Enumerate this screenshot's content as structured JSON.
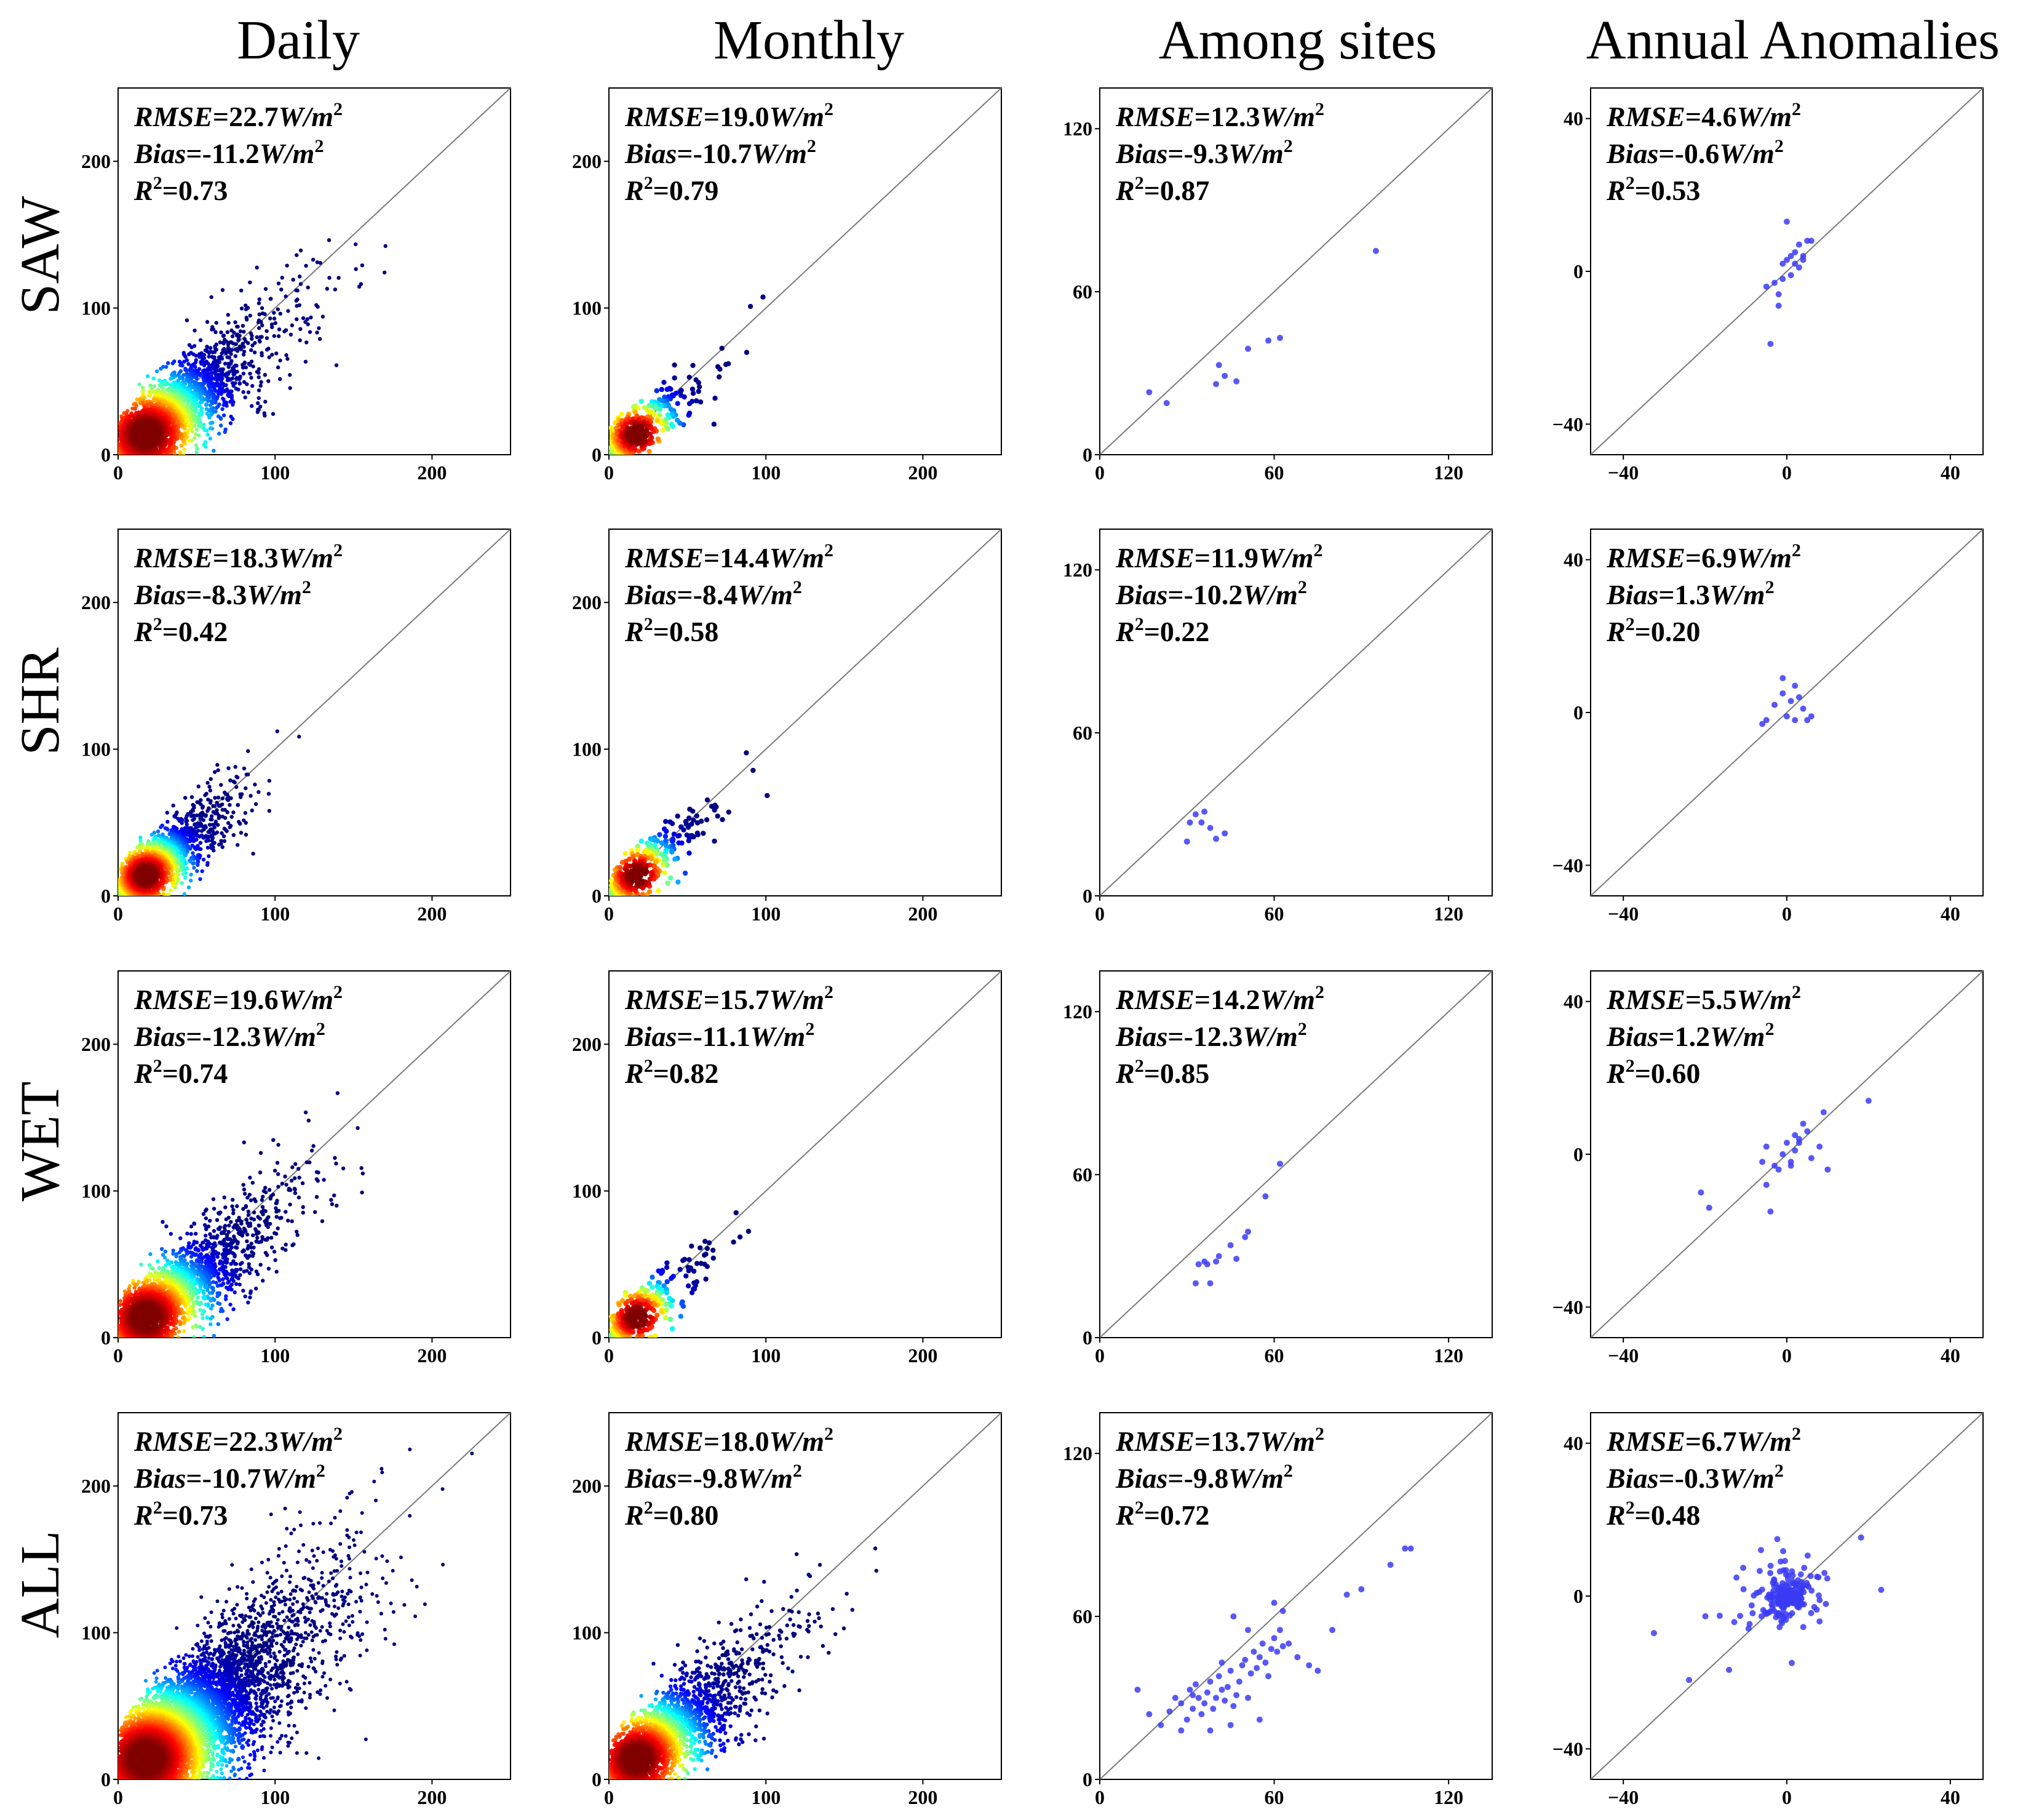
{
  "columns": [
    "Daily",
    "Monthly",
    "Among sites",
    "Annual Anomalies"
  ],
  "rows": [
    "SAW",
    "SHR",
    "WET",
    "ALL"
  ],
  "stat_labels": {
    "rmse": "RMSE",
    "bias": "Bias",
    "r2": "R"
  },
  "unit": "W/m",
  "chart_data": [
    {
      "type": "scatter",
      "row": "SAW",
      "column": "Daily",
      "xlim": [
        0,
        250
      ],
      "ylim": [
        0,
        250
      ],
      "xticks": [
        "0",
        "100",
        "200"
      ],
      "yticks": [
        "0",
        "100",
        "200"
      ],
      "rmse": "22.7",
      "bias": "-11.2",
      "r2": "0.73",
      "density": true,
      "spread": "medium",
      "color_max": "#cc0000"
    },
    {
      "type": "scatter",
      "row": "SAW",
      "column": "Monthly",
      "xlim": [
        0,
        250
      ],
      "ylim": [
        0,
        250
      ],
      "xticks": [
        "0",
        "100",
        "200"
      ],
      "yticks": [
        "0",
        "100",
        "200"
      ],
      "rmse": "19.0",
      "bias": "-10.7",
      "r2": "0.79",
      "density": true,
      "spread": "low"
    },
    {
      "type": "scatter",
      "row": "SAW",
      "column": "Among sites",
      "xlim": [
        0,
        135
      ],
      "ylim": [
        0,
        135
      ],
      "xticks": [
        "0",
        "60",
        "120"
      ],
      "yticks": [
        "0",
        "60",
        "120"
      ],
      "rmse": "12.3",
      "bias": "-9.3",
      "r2": "0.87",
      "points": [
        [
          17,
          23
        ],
        [
          23,
          19
        ],
        [
          40,
          26
        ],
        [
          41,
          33
        ],
        [
          43,
          29
        ],
        [
          47,
          27
        ],
        [
          51,
          39
        ],
        [
          58,
          42
        ],
        [
          62,
          43
        ],
        [
          95,
          75
        ]
      ]
    },
    {
      "type": "scatter",
      "row": "SAW",
      "column": "Annual Anomalies",
      "xlim": [
        -48,
        48
      ],
      "ylim": [
        -48,
        48
      ],
      "xticks": [
        "-40",
        "0",
        "40"
      ],
      "yticks": [
        "-40",
        "0",
        "40"
      ],
      "rmse": "4.6",
      "bias": "-0.6",
      "r2": "0.53",
      "points": [
        [
          -5,
          -4
        ],
        [
          -4,
          -19
        ],
        [
          -3,
          -3
        ],
        [
          -2,
          -6
        ],
        [
          -1,
          -2
        ],
        [
          -1,
          2
        ],
        [
          0,
          3
        ],
        [
          0,
          13
        ],
        [
          1,
          4
        ],
        [
          1,
          -1
        ],
        [
          2,
          5
        ],
        [
          2,
          2
        ],
        [
          3,
          7
        ],
        [
          4,
          4
        ],
        [
          4,
          3
        ],
        [
          5,
          8
        ],
        [
          6,
          8
        ],
        [
          3,
          1
        ],
        [
          -2,
          -9
        ]
      ]
    },
    {
      "type": "scatter",
      "row": "SHR",
      "column": "Daily",
      "xlim": [
        0,
        250
      ],
      "ylim": [
        0,
        250
      ],
      "xticks": [
        "0",
        "100",
        "200"
      ],
      "yticks": [
        "0",
        "100",
        "200"
      ],
      "rmse": "18.3",
      "bias": "-8.3",
      "r2": "0.42",
      "density": true,
      "spread": "wide"
    },
    {
      "type": "scatter",
      "row": "SHR",
      "column": "Monthly",
      "xlim": [
        0,
        250
      ],
      "ylim": [
        0,
        250
      ],
      "xticks": [
        "0",
        "100",
        "200"
      ],
      "yticks": [
        "0",
        "100",
        "200"
      ],
      "rmse": "14.4",
      "bias": "-8.4",
      "r2": "0.58",
      "density": true,
      "spread": "low"
    },
    {
      "type": "scatter",
      "row": "SHR",
      "column": "Among sites",
      "xlim": [
        0,
        135
      ],
      "ylim": [
        0,
        135
      ],
      "xticks": [
        "0",
        "60",
        "120"
      ],
      "yticks": [
        "0",
        "60",
        "120"
      ],
      "rmse": "11.9",
      "bias": "-10.2",
      "r2": "0.22",
      "points": [
        [
          30,
          20
        ],
        [
          31,
          27
        ],
        [
          33,
          30
        ],
        [
          35,
          27
        ],
        [
          36,
          31
        ],
        [
          38,
          25
        ],
        [
          40,
          21
        ],
        [
          43,
          23
        ]
      ]
    },
    {
      "type": "scatter",
      "row": "SHR",
      "column": "Annual Anomalies",
      "xlim": [
        -48,
        48
      ],
      "ylim": [
        -48,
        48
      ],
      "xticks": [
        "-40",
        "0",
        "40"
      ],
      "yticks": [
        "-40",
        "0",
        "40"
      ],
      "rmse": "6.9",
      "bias": "1.3",
      "r2": "0.20",
      "points": [
        [
          -6,
          -3
        ],
        [
          -5,
          -2
        ],
        [
          -3,
          2
        ],
        [
          -1,
          9
        ],
        [
          -1,
          5
        ],
        [
          0,
          -1
        ],
        [
          1,
          3
        ],
        [
          2,
          7
        ],
        [
          3,
          4
        ],
        [
          4,
          1
        ],
        [
          5,
          -2
        ],
        [
          6,
          -1
        ],
        [
          2,
          -2
        ]
      ]
    },
    {
      "type": "scatter",
      "row": "WET",
      "column": "Daily",
      "xlim": [
        0,
        250
      ],
      "ylim": [
        0,
        250
      ],
      "xticks": [
        "0",
        "100",
        "200"
      ],
      "yticks": [
        "0",
        "100",
        "200"
      ],
      "rmse": "19.6",
      "bias": "-12.3",
      "r2": "0.74",
      "density": true,
      "spread": "medium"
    },
    {
      "type": "scatter",
      "row": "WET",
      "column": "Monthly",
      "xlim": [
        0,
        250
      ],
      "ylim": [
        0,
        250
      ],
      "xticks": [
        "0",
        "100",
        "200"
      ],
      "yticks": [
        "0",
        "100",
        "200"
      ],
      "rmse": "15.7",
      "bias": "-11.1",
      "r2": "0.82",
      "density": true,
      "spread": "low"
    },
    {
      "type": "scatter",
      "row": "WET",
      "column": "Among sites",
      "xlim": [
        0,
        135
      ],
      "ylim": [
        0,
        135
      ],
      "xticks": [
        "0",
        "60",
        "120"
      ],
      "yticks": [
        "0",
        "60",
        "120"
      ],
      "rmse": "14.2",
      "bias": "-12.3",
      "r2": "0.85",
      "points": [
        [
          33,
          20
        ],
        [
          34,
          27
        ],
        [
          36,
          28
        ],
        [
          37,
          27
        ],
        [
          38,
          20
        ],
        [
          40,
          28
        ],
        [
          41,
          30
        ],
        [
          45,
          34
        ],
        [
          47,
          29
        ],
        [
          50,
          37
        ],
        [
          51,
          39
        ],
        [
          57,
          52
        ],
        [
          62,
          64
        ]
      ]
    },
    {
      "type": "scatter",
      "row": "WET",
      "column": "Annual Anomalies",
      "xlim": [
        -48,
        48
      ],
      "ylim": [
        -48,
        48
      ],
      "xticks": [
        "-40",
        "0",
        "40"
      ],
      "yticks": [
        "-40",
        "0",
        "40"
      ],
      "rmse": "5.5",
      "bias": "1.2",
      "r2": "0.60",
      "points": [
        [
          -21,
          -10
        ],
        [
          -19,
          -14
        ],
        [
          -5,
          2
        ],
        [
          -5,
          -8
        ],
        [
          -4,
          -15
        ],
        [
          -3,
          -3
        ],
        [
          -2,
          -4
        ],
        [
          -1,
          0
        ],
        [
          0,
          3
        ],
        [
          1,
          -2
        ],
        [
          2,
          1
        ],
        [
          2,
          5
        ],
        [
          3,
          3
        ],
        [
          4,
          8
        ],
        [
          5,
          6
        ],
        [
          6,
          -1
        ],
        [
          8,
          2
        ],
        [
          9,
          11
        ],
        [
          10,
          -4
        ],
        [
          20,
          14
        ],
        [
          -6,
          -2
        ],
        [
          1,
          -3
        ],
        [
          3,
          4
        ]
      ]
    },
    {
      "type": "scatter",
      "row": "ALL",
      "column": "Daily",
      "xlim": [
        0,
        250
      ],
      "ylim": [
        0,
        250
      ],
      "xticks": [
        "0",
        "100",
        "200"
      ],
      "yticks": [
        "0",
        "100",
        "200"
      ],
      "rmse": "22.3",
      "bias": "-10.7",
      "r2": "0.73",
      "density": true,
      "spread": "full"
    },
    {
      "type": "scatter",
      "row": "ALL",
      "column": "Monthly",
      "xlim": [
        0,
        250
      ],
      "ylim": [
        0,
        250
      ],
      "xticks": [
        "0",
        "100",
        "200"
      ],
      "yticks": [
        "0",
        "100",
        "200"
      ],
      "rmse": "18.0",
      "bias": "-9.8",
      "r2": "0.80",
      "density": true,
      "spread": "medium"
    },
    {
      "type": "scatter",
      "row": "ALL",
      "column": "Among sites",
      "xlim": [
        0,
        135
      ],
      "ylim": [
        0,
        135
      ],
      "xticks": [
        "0",
        "60",
        "120"
      ],
      "yticks": [
        "0",
        "60",
        "120"
      ],
      "rmse": "13.7",
      "bias": "-9.8",
      "r2": "0.72",
      "points": [
        [
          13,
          33
        ],
        [
          17,
          24
        ],
        [
          21,
          20
        ],
        [
          24,
          25
        ],
        [
          26,
          30
        ],
        [
          28,
          28
        ],
        [
          30,
          22
        ],
        [
          31,
          33
        ],
        [
          32,
          26
        ],
        [
          33,
          35
        ],
        [
          34,
          30
        ],
        [
          35,
          24
        ],
        [
          36,
          28
        ],
        [
          37,
          32
        ],
        [
          38,
          36
        ],
        [
          39,
          26
        ],
        [
          40,
          30
        ],
        [
          41,
          38
        ],
        [
          42,
          33
        ],
        [
          43,
          29
        ],
        [
          44,
          34
        ],
        [
          45,
          40
        ],
        [
          46,
          27
        ],
        [
          47,
          31
        ],
        [
          48,
          36
        ],
        [
          49,
          42
        ],
        [
          50,
          44
        ],
        [
          51,
          30
        ],
        [
          52,
          39
        ],
        [
          53,
          47
        ],
        [
          54,
          41
        ],
        [
          55,
          45
        ],
        [
          56,
          50
        ],
        [
          57,
          43
        ],
        [
          58,
          38
        ],
        [
          59,
          48
        ],
        [
          60,
          52
        ],
        [
          61,
          47
        ],
        [
          62,
          55
        ],
        [
          63,
          49
        ],
        [
          65,
          50
        ],
        [
          68,
          45
        ],
        [
          72,
          42
        ],
        [
          75,
          40
        ],
        [
          80,
          55
        ],
        [
          85,
          68
        ],
        [
          90,
          70
        ],
        [
          100,
          79
        ],
        [
          105,
          85
        ],
        [
          107,
          85
        ],
        [
          60,
          65
        ],
        [
          63,
          62
        ],
        [
          55,
          22
        ],
        [
          45,
          20
        ],
        [
          38,
          18
        ],
        [
          28,
          18
        ],
        [
          42,
          43
        ],
        [
          51,
          55
        ],
        [
          46,
          60
        ],
        [
          32,
          31
        ]
      ]
    },
    {
      "type": "scatter",
      "row": "ALL",
      "column": "Annual Anomalies",
      "xlim": [
        -48,
        48
      ],
      "ylim": [
        -48,
        48
      ],
      "xticks": [
        "-40",
        "0",
        "40"
      ],
      "yticks": [
        "-40",
        "0",
        "40"
      ],
      "rmse": "6.7",
      "bias": "-0.3",
      "r2": "0.48",
      "density_points": true
    }
  ]
}
